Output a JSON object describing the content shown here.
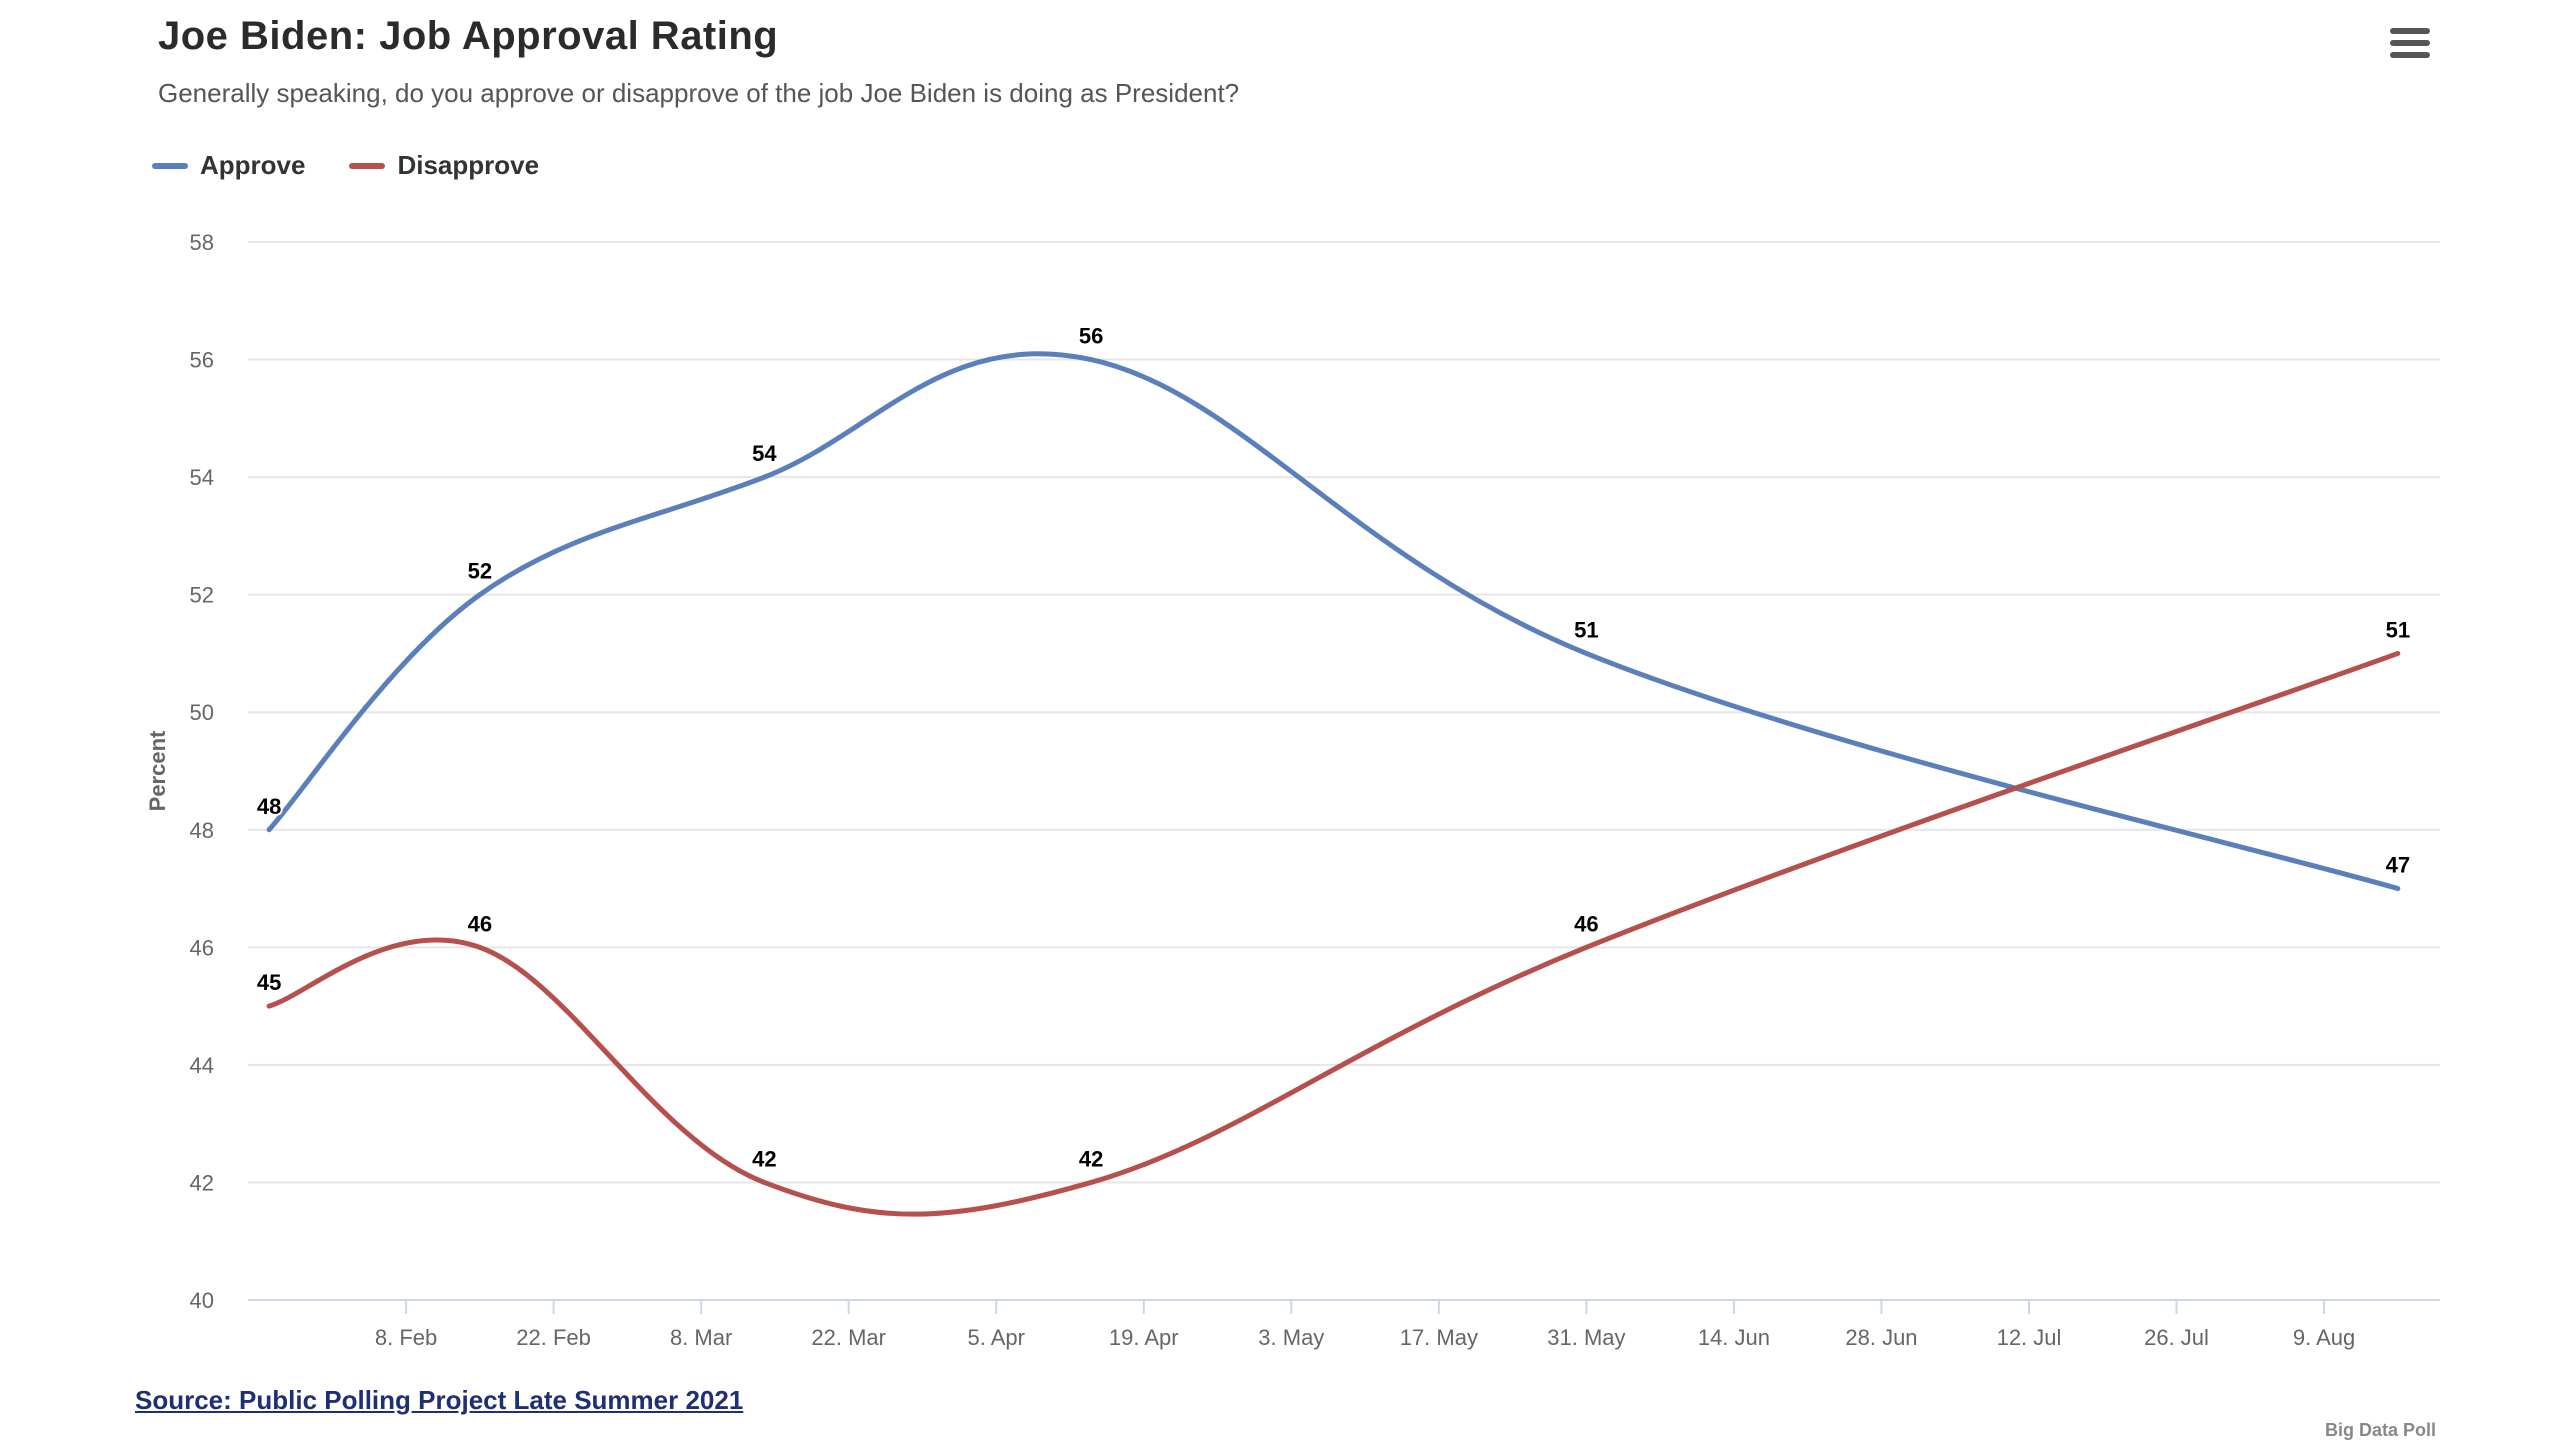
{
  "title": "Joe Biden: Job Approval Rating",
  "subtitle": "Generally speaking, do you approve or disapprove of the job Joe Biden is doing as President?",
  "menu_icon": "hamburger-menu-icon",
  "source_label": "Source: Public Polling Project Late Summer 2021",
  "credits": "Big Data Poll",
  "colors": {
    "approve": "#5b7fba",
    "disapprove": "#b5504c",
    "grid": "#e6e6e6",
    "axis": "#ccd6eb"
  },
  "chart_data": {
    "type": "line",
    "title": "Joe Biden: Job Approval Rating",
    "subtitle": "Generally speaking, do you approve or disapprove of the job Joe Biden is doing as President?",
    "ylabel": "Percent",
    "ylim": [
      40,
      58
    ],
    "yticks": [
      "40",
      "42",
      "44",
      "46",
      "48",
      "50",
      "52",
      "54",
      "56",
      "58"
    ],
    "xlim": [
      "2021-01-24",
      "2021-08-20"
    ],
    "xticks": [
      {
        "date": "2021-02-08",
        "label": "8. Feb"
      },
      {
        "date": "2021-02-22",
        "label": "22. Feb"
      },
      {
        "date": "2021-03-08",
        "label": "8. Mar"
      },
      {
        "date": "2021-03-22",
        "label": "22. Mar"
      },
      {
        "date": "2021-04-05",
        "label": "5. Apr"
      },
      {
        "date": "2021-04-19",
        "label": "19. Apr"
      },
      {
        "date": "2021-05-03",
        "label": "3. May"
      },
      {
        "date": "2021-05-17",
        "label": "17. May"
      },
      {
        "date": "2021-05-31",
        "label": "31. May"
      },
      {
        "date": "2021-06-14",
        "label": "14. Jun"
      },
      {
        "date": "2021-06-28",
        "label": "28. Jun"
      },
      {
        "date": "2021-07-12",
        "label": "12. Jul"
      },
      {
        "date": "2021-07-26",
        "label": "26. Jul"
      },
      {
        "date": "2021-08-09",
        "label": "9. Aug"
      }
    ],
    "grid": true,
    "legend_position": "top-left",
    "series": [
      {
        "name": "Approve",
        "color": "#5b7fba",
        "points": [
          {
            "date": "2021-01-26",
            "value": 48
          },
          {
            "date": "2021-02-15",
            "value": 52
          },
          {
            "date": "2021-03-14",
            "value": 54
          },
          {
            "date": "2021-04-14",
            "value": 56
          },
          {
            "date": "2021-05-31",
            "value": 51
          },
          {
            "date": "2021-08-16",
            "value": 47
          }
        ]
      },
      {
        "name": "Disapprove",
        "color": "#b5504c",
        "points": [
          {
            "date": "2021-01-26",
            "value": 45
          },
          {
            "date": "2021-02-15",
            "value": 46
          },
          {
            "date": "2021-03-14",
            "value": 42
          },
          {
            "date": "2021-04-14",
            "value": 42
          },
          {
            "date": "2021-05-31",
            "value": 46
          },
          {
            "date": "2021-08-16",
            "value": 51
          }
        ]
      }
    ]
  }
}
